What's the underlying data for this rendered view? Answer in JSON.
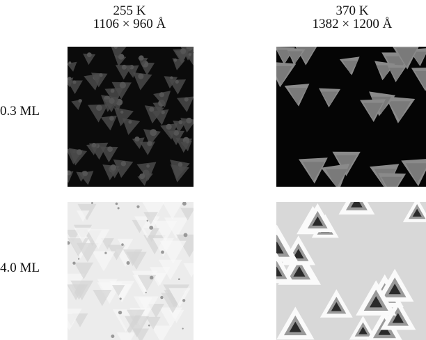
{
  "columns": [
    {
      "temperature": "255 K",
      "scale": "1106 × 960 Å"
    },
    {
      "temperature": "370 K",
      "scale": "1382 × 1200 Å"
    }
  ],
  "rows": [
    {
      "coverage": "0.3 ML"
    },
    {
      "coverage": "4.0 ML"
    }
  ]
}
